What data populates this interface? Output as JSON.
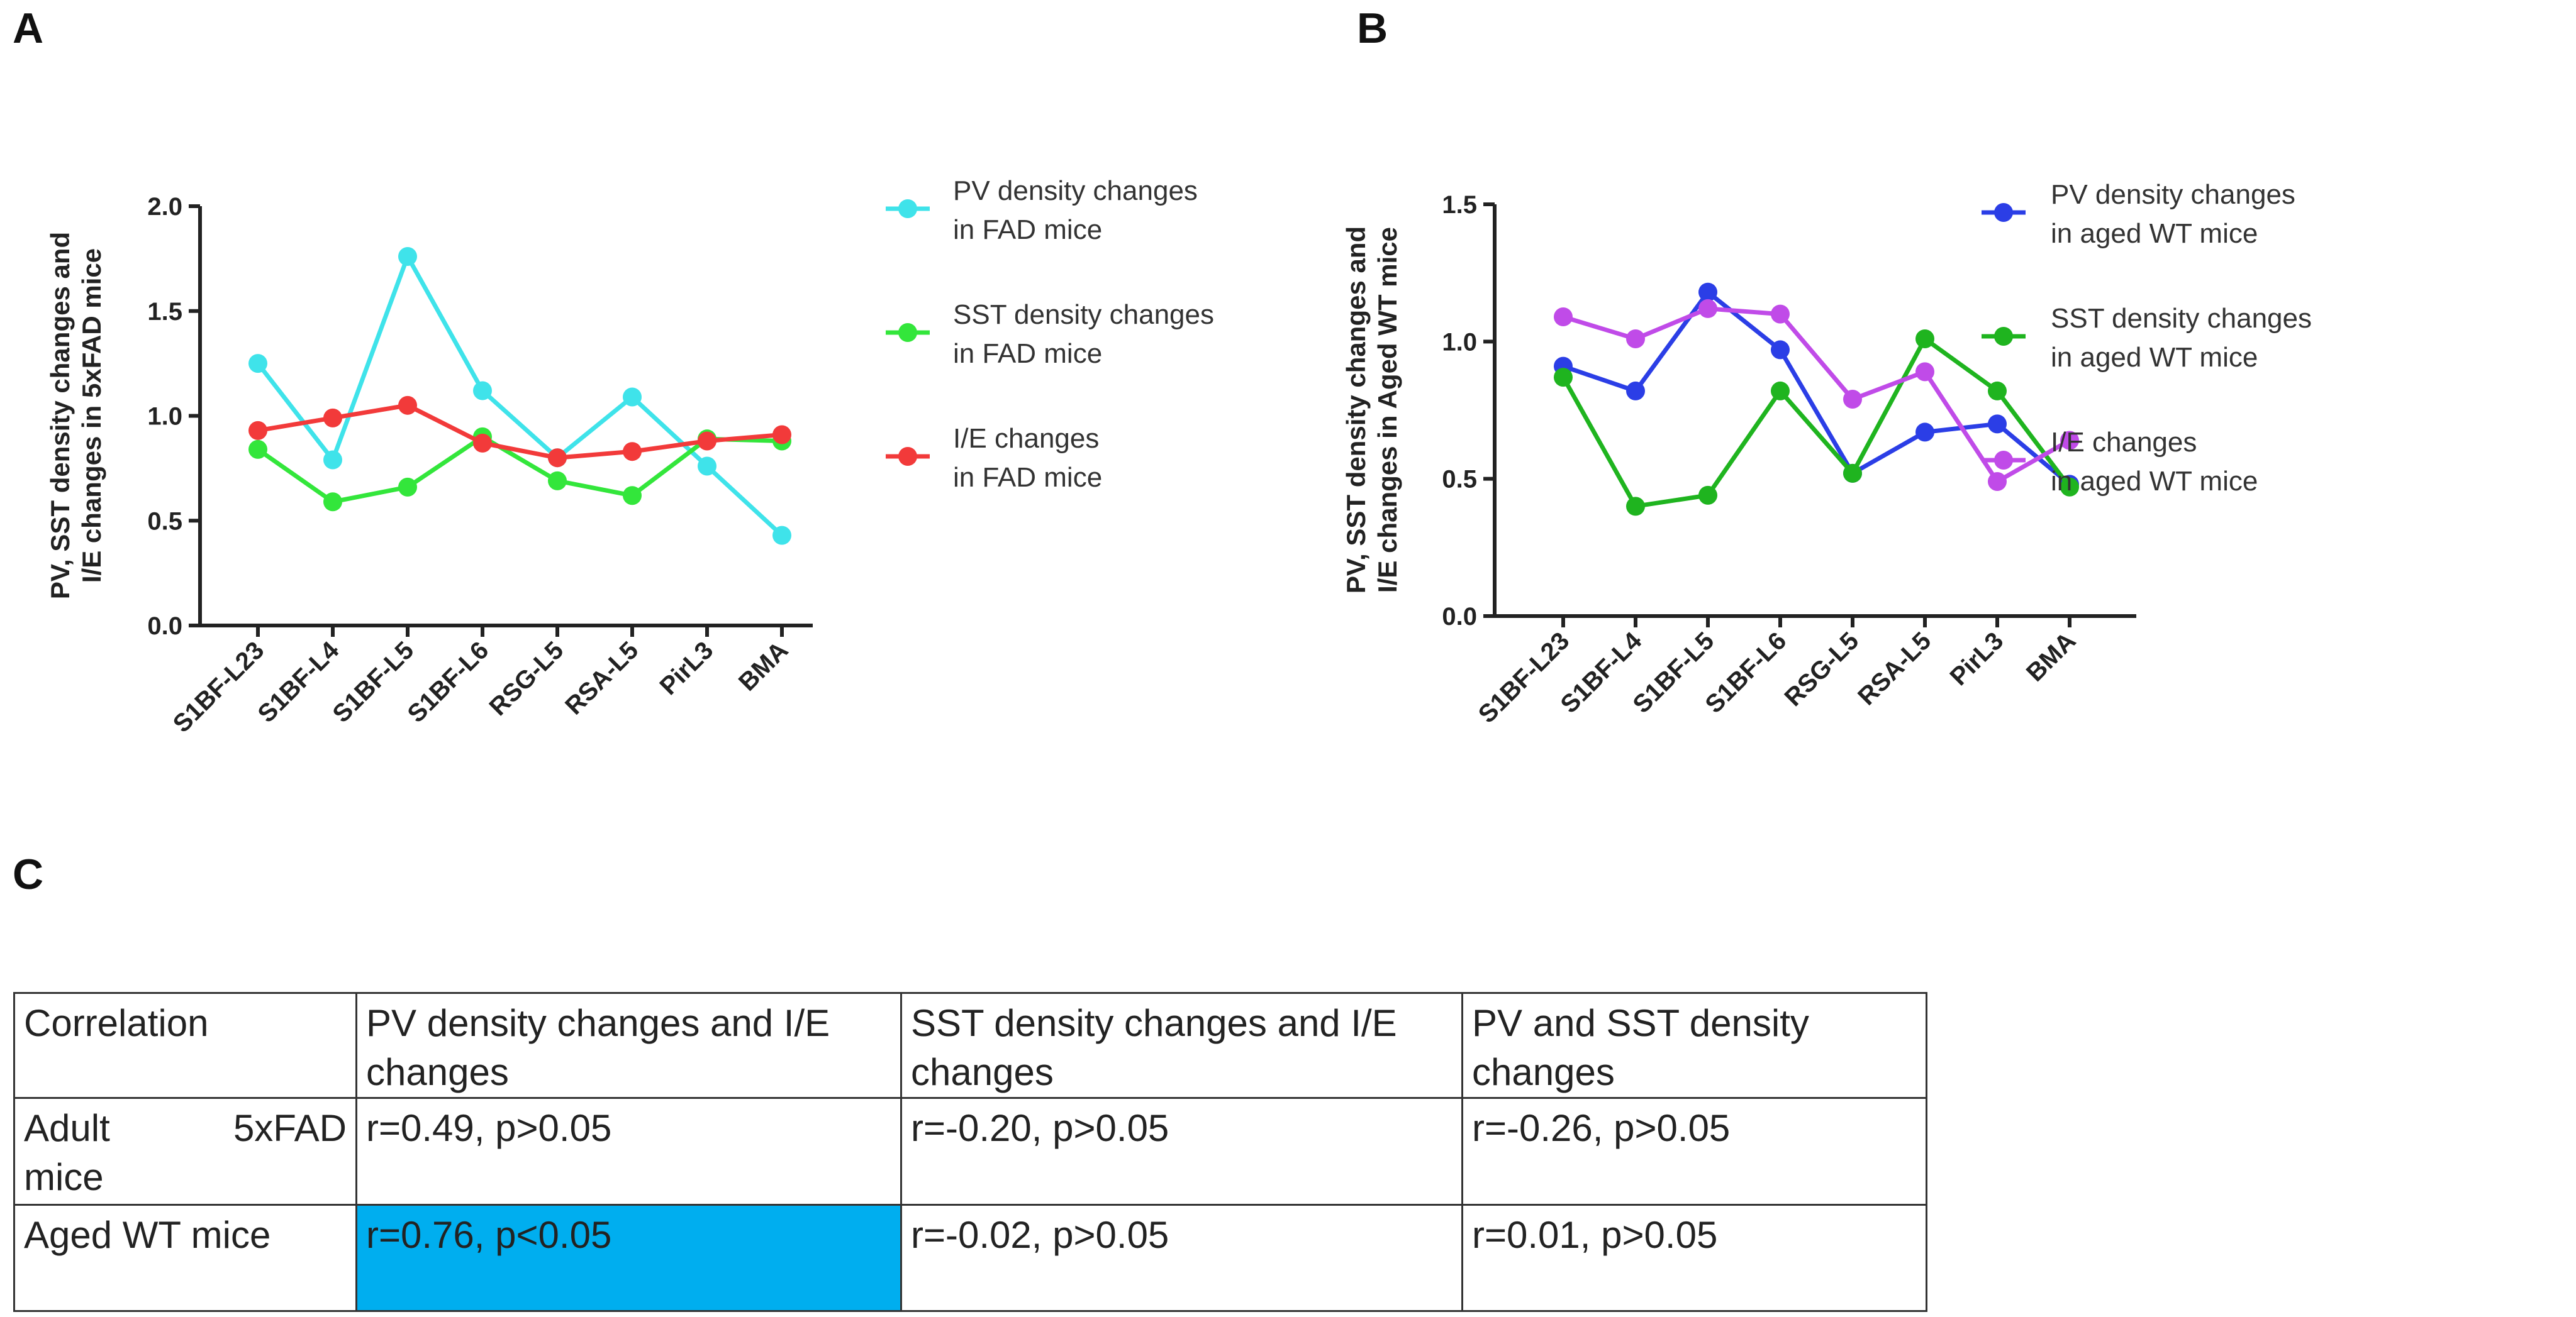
{
  "panels": {
    "a": "A",
    "b": "B",
    "c": "C"
  },
  "chart_data": [
    {
      "type": "line",
      "title": "",
      "ylabel_line1": "PV, SST density changes and",
      "ylabel_line2": "I/E changes in 5xFAD mice",
      "xlabel": "",
      "ylim": [
        0,
        2.0
      ],
      "yticks": [
        0.0,
        0.5,
        1.0,
        1.5,
        2.0
      ],
      "ytick_labels": [
        "0.0",
        "0.5",
        "1.0",
        "1.5",
        "2.0"
      ],
      "categories": [
        "S1BF-L23",
        "S1BF-L4",
        "S1BF-L5",
        "S1BF-L6",
        "RSG-L5",
        "RSA-L5",
        "PirL3",
        "BMA"
      ],
      "legend_position": "right",
      "series": [
        {
          "name": "PV density changes in FAD mice",
          "legend_line1": "PV density changes",
          "legend_line2": " in FAD mice",
          "color": "#3fe3ea",
          "values": [
            1.25,
            0.79,
            1.76,
            1.12,
            0.8,
            1.09,
            0.76,
            0.43
          ]
        },
        {
          "name": "SST density changes in FAD mice",
          "legend_line1": "SST density changes",
          "legend_line2": " in FAD mice",
          "color": "#33e63b",
          "values": [
            0.84,
            0.59,
            0.66,
            0.9,
            0.69,
            0.62,
            0.89,
            0.88
          ]
        },
        {
          "name": "I/E changes in FAD mice",
          "legend_line1": "I/E changes",
          "legend_line2": " in FAD mice",
          "color": "#f23a3a",
          "values": [
            0.93,
            0.99,
            1.05,
            0.87,
            0.8,
            0.83,
            0.88,
            0.91
          ]
        }
      ]
    },
    {
      "type": "line",
      "title": "",
      "ylabel_line1": "PV, SST density changes and",
      "ylabel_line2": "I/E changes in Aged WT mice",
      "xlabel": "",
      "ylim": [
        0,
        1.5
      ],
      "yticks": [
        0.0,
        0.5,
        1.0,
        1.5
      ],
      "ytick_labels": [
        "0.0",
        "0.5",
        "1.0",
        "1.5"
      ],
      "categories": [
        "S1BF-L23",
        "S1BF-L4",
        "S1BF-L5",
        "S1BF-L6",
        "RSG-L5",
        "RSA-L5",
        "PirL3",
        "BMA"
      ],
      "legend_position": "right",
      "series": [
        {
          "name": "PV density changes in aged WT mice",
          "legend_line1": "PV density changes",
          "legend_line2": " in aged WT mice",
          "color": "#2b3ee6",
          "values": [
            0.91,
            0.82,
            1.18,
            0.97,
            0.52,
            0.67,
            0.7,
            0.48
          ]
        },
        {
          "name": "SST density changes in aged WT mice",
          "legend_line1": "SST density changes",
          "legend_line2": " in aged WT mice",
          "color": "#1fb41f",
          "values": [
            0.87,
            0.4,
            0.44,
            0.82,
            0.52,
            1.01,
            0.82,
            0.47
          ]
        },
        {
          "name": "I/E changes in aged WT mice",
          "legend_line1": "I/E changes",
          "legend_line2": " in aged WT mice",
          "color": "#c04be8",
          "values": [
            1.09,
            1.01,
            1.12,
            1.1,
            0.79,
            0.89,
            0.49,
            0.64
          ]
        }
      ]
    }
  ],
  "table": {
    "headers": [
      "Correlation",
      "PV density changes and I/E changes",
      "SST density changes and I/E changes",
      "PV and SST density changes"
    ],
    "rows": [
      {
        "label_a": "Adult",
        "label_b": "5xFAD",
        "label_c": "mice",
        "cells": [
          "r=0.49, p>0.05",
          "r=-0.20, p>0.05",
          "r=-0.26, p>0.05"
        ]
      },
      {
        "label": "Aged WT mice",
        "cells": [
          "r=0.76, p<0.05",
          "r=-0.02, p>0.05",
          "r=0.01, p>0.05"
        ]
      }
    ],
    "highlight_color": "#00aeef"
  }
}
